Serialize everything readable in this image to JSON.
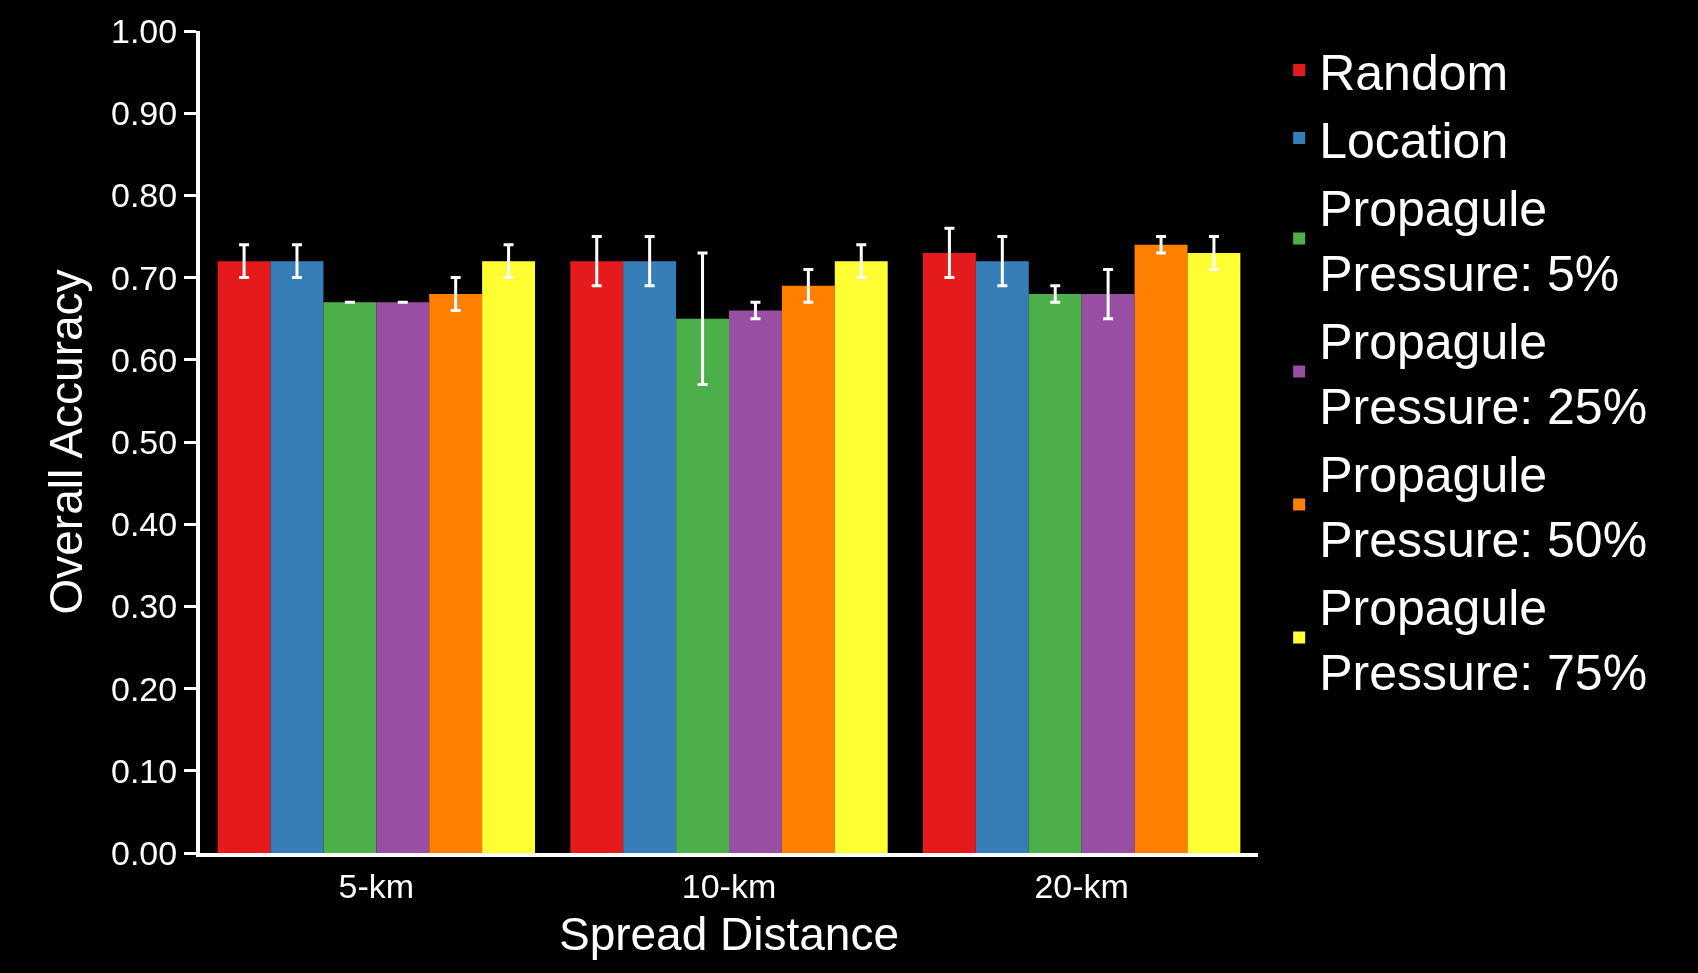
{
  "chart_data": {
    "type": "bar",
    "xlabel": "Spread Distance",
    "ylabel": "Overall Accuracy",
    "categories": [
      "5-km",
      "10-km",
      "20-km"
    ],
    "series": [
      {
        "name": "Random",
        "color": "#e41a1c",
        "values": [
          0.72,
          0.72,
          0.73
        ],
        "errors": [
          0.02,
          0.03,
          0.03
        ]
      },
      {
        "name": "Location",
        "color": "#377eb8",
        "values": [
          0.72,
          0.72,
          0.72
        ],
        "errors": [
          0.02,
          0.03,
          0.03
        ]
      },
      {
        "name": "Propagule\nPressure: 5%",
        "color": "#4daf4a",
        "values": [
          0.67,
          0.65,
          0.68
        ],
        "errors": [
          0,
          0.08,
          0.01
        ]
      },
      {
        "name": "Propagule\nPressure: 25%",
        "color": "#984ea3",
        "values": [
          0.67,
          0.66,
          0.68
        ],
        "errors": [
          0,
          0.01,
          0.03
        ]
      },
      {
        "name": "Propagule\nPressure: 50%",
        "color": "#ff7f00",
        "values": [
          0.68,
          0.69,
          0.74
        ],
        "errors": [
          0.02,
          0.02,
          0.01
        ]
      },
      {
        "name": "Propagule\nPressure: 75%",
        "color": "#ffff33",
        "values": [
          0.72,
          0.72,
          0.73
        ],
        "errors": [
          0.02,
          0.02,
          0.02
        ]
      }
    ],
    "ylim": [
      0,
      1
    ],
    "yticks": [
      {
        "value": 0,
        "label": "0.00"
      },
      {
        "value": 0.1,
        "label": "0.10"
      },
      {
        "value": 0.2,
        "label": "0.20"
      },
      {
        "value": 0.3,
        "label": "0.30"
      },
      {
        "value": 0.4,
        "label": "0.40"
      },
      {
        "value": 0.5,
        "label": "0.50"
      },
      {
        "value": 0.6,
        "label": "0.60"
      },
      {
        "value": 0.7,
        "label": "0.70"
      },
      {
        "value": 0.8,
        "label": "0.80"
      },
      {
        "value": 0.9,
        "label": "0.90"
      },
      {
        "value": 1,
        "label": "1.00"
      }
    ],
    "legend": "top right",
    "grid": false
  }
}
